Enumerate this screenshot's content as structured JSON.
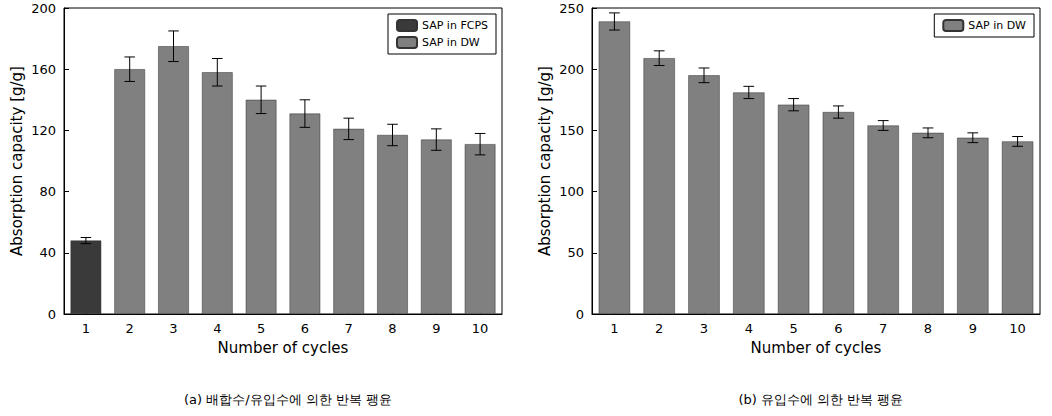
{
  "chart_data": [
    {
      "type": "bar",
      "title": "(a) 배합수/유입수에 의한 반복 팽윤",
      "x_label": "Number of cycles",
      "y_label": "Absorption capacity [g/g]",
      "categories": [
        "1",
        "2",
        "3",
        "4",
        "5",
        "6",
        "7",
        "8",
        "9",
        "10"
      ],
      "series": [
        {
          "name": "SAP in FCPS",
          "color": "#3a3a3a",
          "values": [
            48,
            null,
            null,
            null,
            null,
            null,
            null,
            null,
            null,
            null
          ],
          "errors": [
            2,
            null,
            null,
            null,
            null,
            null,
            null,
            null,
            null,
            null
          ]
        },
        {
          "name": "SAP in DW",
          "color": "#808080",
          "values": [
            null,
            160,
            175,
            158,
            140,
            131,
            121,
            117,
            114,
            111
          ],
          "errors": [
            null,
            8,
            10,
            9,
            9,
            9,
            7,
            7,
            7,
            7
          ]
        }
      ],
      "ylim": [
        0,
        200
      ],
      "yticks": [
        0,
        40,
        80,
        120,
        160,
        200
      ],
      "legend": "upper right"
    },
    {
      "type": "bar",
      "title": "(b) 유입수에 의한 반복 팽윤",
      "x_label": "Number of cycles",
      "y_label": "Absorption capacity [g/g]",
      "categories": [
        "1",
        "2",
        "3",
        "4",
        "5",
        "6",
        "7",
        "8",
        "9",
        "10"
      ],
      "series": [
        {
          "name": "SAP in DW",
          "color": "#808080",
          "values": [
            239,
            209,
            195,
            181,
            171,
            165,
            154,
            148,
            144,
            141
          ],
          "errors": [
            7,
            6,
            6,
            5,
            5,
            5,
            4,
            4,
            4,
            4
          ]
        }
      ],
      "ylim": [
        0,
        250
      ],
      "yticks": [
        0,
        50,
        100,
        150,
        200,
        250
      ],
      "legend": "upper right"
    }
  ]
}
